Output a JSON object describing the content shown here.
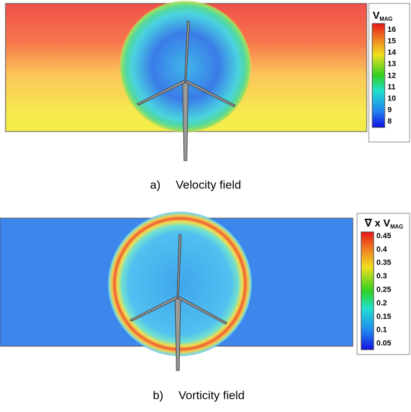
{
  "panels": [
    {
      "legend": {
        "title": {
          "main": "V",
          "sub": "MAG"
        },
        "labels": [
          16,
          15,
          14,
          13,
          12,
          11,
          10,
          9,
          8
        ]
      },
      "caption": {
        "label": "a)",
        "text": "Velocity field"
      }
    },
    {
      "legend": {
        "title": {
          "main": "∇ x V",
          "sub": "MAG"
        },
        "labels": [
          0.45,
          0.4,
          0.35,
          0.3,
          0.25,
          0.2,
          0.15,
          0.1,
          0.05
        ]
      },
      "caption": {
        "label": "b)",
        "text": "Vorticity field"
      }
    }
  ]
}
